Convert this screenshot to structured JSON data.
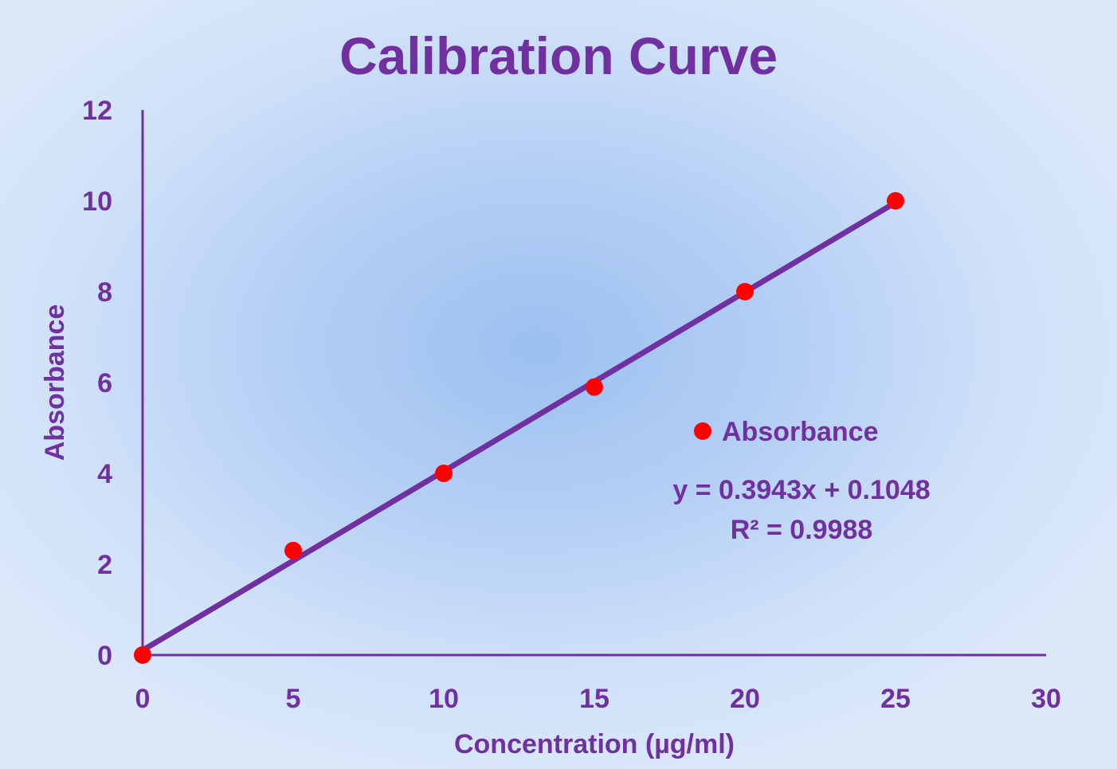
{
  "chart_data": {
    "type": "scatter",
    "title": "Calibration Curve",
    "xlabel": "Concentration (µg/ml)",
    "ylabel": "Absorbance",
    "xlim": [
      0,
      30
    ],
    "ylim": [
      0,
      12
    ],
    "xticks": [
      "0",
      "5",
      "10",
      "15",
      "20",
      "25",
      "30"
    ],
    "yticks": [
      "0",
      "2",
      "4",
      "6",
      "8",
      "10",
      "12"
    ],
    "grid": false,
    "legend_position": "right",
    "series": [
      {
        "name": "Absorbance",
        "color": "#ff0000",
        "x": [
          0,
          5,
          10,
          15,
          20,
          25
        ],
        "y": [
          0,
          2.3,
          4.0,
          5.9,
          8.0,
          10.0
        ]
      }
    ],
    "trendline": {
      "type": "linear",
      "slope": 0.3943,
      "intercept": 0.1048,
      "color": "#7030a0",
      "equation_label": "y = 0.3943x + 0.1048",
      "r2_label": "R² = 0.9988"
    },
    "colors": {
      "text": "#7030a0",
      "axis": "#7030a0",
      "marker": "#ff0000"
    }
  }
}
